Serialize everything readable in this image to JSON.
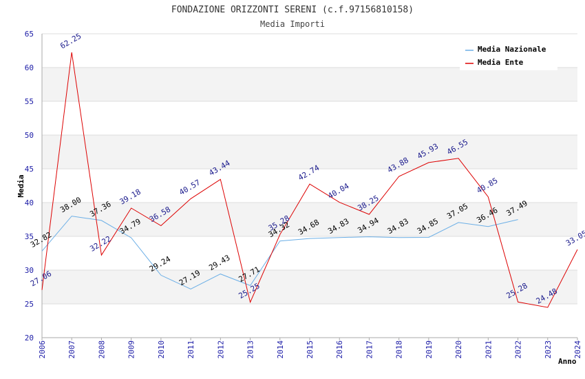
{
  "chart_data": {
    "type": "line",
    "title": "FONDAZIONE ORIZZONTI SERENI (c.f.97156810158)",
    "subtitle": "Media Importi",
    "xlabel": "Anno",
    "ylabel": "Media",
    "ylim": [
      20,
      65
    ],
    "yticks": [
      20,
      25,
      30,
      35,
      40,
      45,
      50,
      55,
      60,
      65
    ],
    "x": [
      "2006",
      "2007",
      "2008",
      "2009",
      "2010",
      "2011",
      "2012",
      "2013",
      "2014",
      "2015",
      "2016",
      "2017",
      "2018",
      "2019",
      "2020",
      "2021",
      "2022",
      "2023",
      "2024"
    ],
    "grid": true,
    "legend_position": "top-right",
    "series": [
      {
        "name": "Media Nazionale",
        "color": "#6aaee6",
        "values": [
          32.82,
          38.0,
          37.36,
          34.79,
          29.24,
          27.19,
          29.43,
          27.71,
          34.32,
          34.68,
          34.83,
          34.94,
          34.83,
          34.85,
          37.05,
          36.46,
          37.49,
          null,
          null
        ],
        "labels": [
          "32.82",
          "38.00",
          "37.36",
          "34.79",
          "29.24",
          "27.19",
          "29.43",
          "27.71",
          "34.32",
          "34.68",
          "34.83",
          "34.94",
          "34.83",
          "34.85",
          "37.05",
          "36.46",
          "37.49",
          "",
          ""
        ]
      },
      {
        "name": "Media Ente",
        "color": "#dd0000",
        "values": [
          27.06,
          62.25,
          32.22,
          39.18,
          36.58,
          40.57,
          43.44,
          25.25,
          35.28,
          42.74,
          40.04,
          38.25,
          43.88,
          45.93,
          46.55,
          40.85,
          25.28,
          24.48,
          33.05
        ],
        "labels": [
          "27.06",
          "62.25",
          "32.22",
          "39.18",
          "36.58",
          "40.57",
          "43.44",
          "25.25",
          "35.28",
          "42.74",
          "40.04",
          "38.25",
          "43.88",
          "45.93",
          "46.55",
          "40.85",
          "25.28",
          "24.48",
          "33.05"
        ]
      }
    ]
  }
}
